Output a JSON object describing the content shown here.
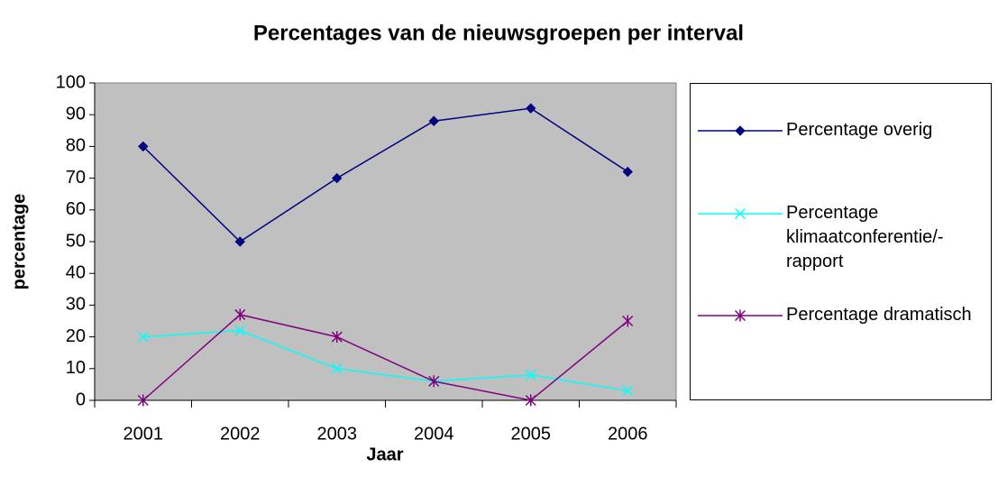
{
  "chart_data": {
    "type": "line",
    "title": "Percentages van de nieuwsgroepen per interval",
    "x_label": "Jaar",
    "y_label": "percentage",
    "categories": [
      "2001",
      "2002",
      "2003",
      "2004",
      "2005",
      "2006"
    ],
    "series": [
      {
        "name": "Percentage overig",
        "color": "#000080",
        "marker": "diamond",
        "values": [
          80,
          50,
          70,
          88,
          92,
          72
        ]
      },
      {
        "name": "Percentage klimaatconferentie/-rapport",
        "color": "#00ffff",
        "marker": "x",
        "values": [
          20,
          22,
          10,
          6,
          8,
          3
        ]
      },
      {
        "name": "Percentage dramatisch",
        "color": "#800080",
        "marker": "asterisk",
        "values": [
          0,
          27,
          20,
          6,
          0,
          25
        ]
      }
    ],
    "ylim": [
      0,
      100
    ],
    "yticks": [
      0,
      10,
      20,
      30,
      40,
      50,
      60,
      70,
      80,
      90,
      100
    ],
    "legend": "right"
  }
}
